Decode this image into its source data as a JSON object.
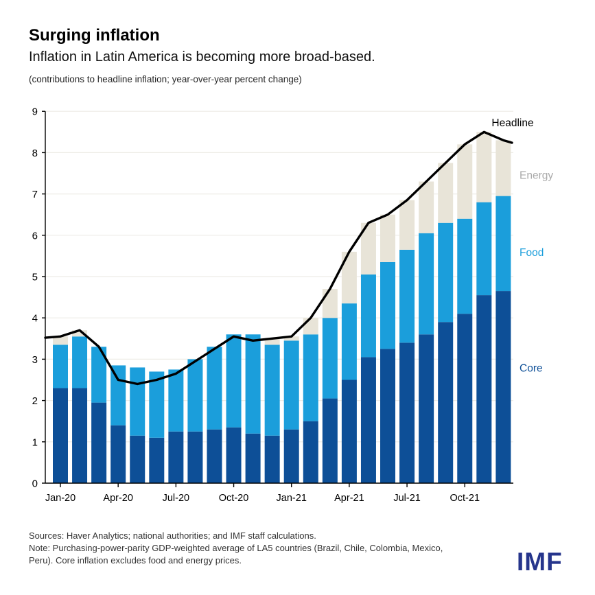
{
  "header": {
    "title": "Surging inflation",
    "subtitle": "Inflation in Latin America is becoming more broad-based.",
    "unit_note": "(contributions to headline inflation; year-over-year percent change)"
  },
  "chart_data": {
    "type": "bar",
    "stacked": true,
    "title": "Surging inflation",
    "subtitle": "Inflation in Latin America is becoming more broad-based.",
    "units": "contributions to headline inflation; year-over-year percent change",
    "x": [
      "Jan-20",
      "Feb-20",
      "Mar-20",
      "Apr-20",
      "May-20",
      "Jun-20",
      "Jul-20",
      "Aug-20",
      "Sep-20",
      "Oct-20",
      "Nov-20",
      "Dec-20",
      "Jan-21",
      "Feb-21",
      "Mar-21",
      "Apr-21",
      "May-21",
      "Jun-21",
      "Jul-21",
      "Aug-21",
      "Sep-21",
      "Oct-21",
      "Nov-21",
      "Dec-21"
    ],
    "x_tick_labels": [
      "Jan-20",
      "Apr-20",
      "Jul-20",
      "Oct-20",
      "Jan-21",
      "Apr-21",
      "Jul-21",
      "Oct-21"
    ],
    "x_tick_every": 3,
    "ylim": [
      0,
      9
    ],
    "yticks": [
      0,
      1,
      2,
      3,
      4,
      5,
      6,
      7,
      8,
      9
    ],
    "grid": true,
    "series": [
      {
        "name": "Core",
        "type": "bar",
        "color": "#0d4f97",
        "values": [
          2.3,
          2.3,
          1.95,
          1.4,
          1.15,
          1.1,
          1.25,
          1.25,
          1.3,
          1.35,
          1.2,
          1.15,
          1.3,
          1.5,
          2.05,
          2.5,
          3.05,
          3.25,
          3.4,
          3.6,
          3.9,
          4.1,
          4.55,
          4.65
        ]
      },
      {
        "name": "Food",
        "type": "bar",
        "color": "#1b9edb",
        "values": [
          1.05,
          1.25,
          1.35,
          1.45,
          1.65,
          1.6,
          1.5,
          1.75,
          2.0,
          2.25,
          2.4,
          2.2,
          2.15,
          2.1,
          1.95,
          1.85,
          2.0,
          2.1,
          2.25,
          2.45,
          2.4,
          2.3,
          2.25,
          2.3
        ]
      },
      {
        "name": "Energy",
        "type": "bar",
        "color": "#e8e4d8",
        "values": [
          0.2,
          0.15,
          0,
          0,
          0,
          0,
          0,
          0,
          0,
          0,
          0,
          0.15,
          0.1,
          0.4,
          0.7,
          1.25,
          1.25,
          1.15,
          1.2,
          1.25,
          1.45,
          1.8,
          1.7,
          1.35
        ]
      },
      {
        "name": "Headline",
        "type": "line",
        "color": "#000000",
        "values": [
          3.55,
          3.7,
          3.3,
          2.5,
          2.4,
          2.5,
          2.65,
          2.95,
          3.25,
          3.55,
          3.45,
          3.5,
          3.55,
          4.0,
          4.7,
          5.6,
          6.3,
          6.5,
          6.85,
          7.3,
          7.75,
          8.2,
          8.5,
          8.3
        ]
      }
    ],
    "annotations": [
      {
        "text": "Headline",
        "color": "#000000",
        "x": 747,
        "value": 8.72,
        "anchor": "middle",
        "size": 15.5
      },
      {
        "text": "Energy",
        "color": "#a9a9a9",
        "x": 757,
        "value": 7.45,
        "anchor": "start",
        "size": 15.5
      },
      {
        "text": "Food",
        "color": "#1b9edb",
        "x": 757,
        "value": 5.58,
        "anchor": "start",
        "size": 15.5
      },
      {
        "text": "Core",
        "color": "#0d4f97",
        "x": 757,
        "value": 2.78,
        "anchor": "start",
        "size": 15.5
      }
    ],
    "legend_position": "right-inline"
  },
  "footer": {
    "sources": "Sources: Haver Analytics; national authorities; and IMF staff calculations.",
    "note": "Note: Purchasing-power-parity GDP-weighted average of LA5 countries (Brazil, Chile, Colombia, Mexico, Peru). Core inflation excludes food and energy prices."
  },
  "logo": {
    "text": "IMF",
    "color": "#26358c"
  }
}
